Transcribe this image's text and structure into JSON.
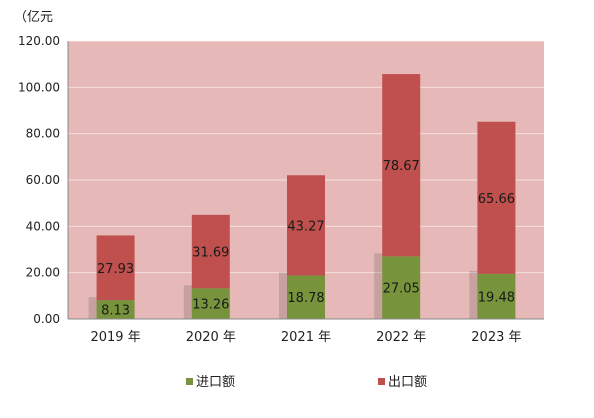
{
  "chart_data": {
    "type": "bar",
    "stacked": true,
    "unit": "（亿元",
    "categories": [
      "2019 年",
      "2020 年",
      "2021 年",
      "2022 年",
      "2023 年"
    ],
    "series": [
      {
        "name": "进口额",
        "color": "#77933c",
        "values": [
          8.13,
          13.26,
          18.78,
          27.05,
          19.48
        ]
      },
      {
        "name": "出口额",
        "color": "#c0504d",
        "values": [
          27.93,
          31.69,
          43.27,
          78.67,
          65.66
        ]
      }
    ],
    "ylim": [
      0,
      120
    ],
    "yticks": [
      "0.00",
      "20.00",
      "40.00",
      "60.00",
      "80.00",
      "100.00",
      "120.00"
    ],
    "plot_background": "#e6b9b8",
    "grid": true,
    "legend_position": "bottom"
  }
}
